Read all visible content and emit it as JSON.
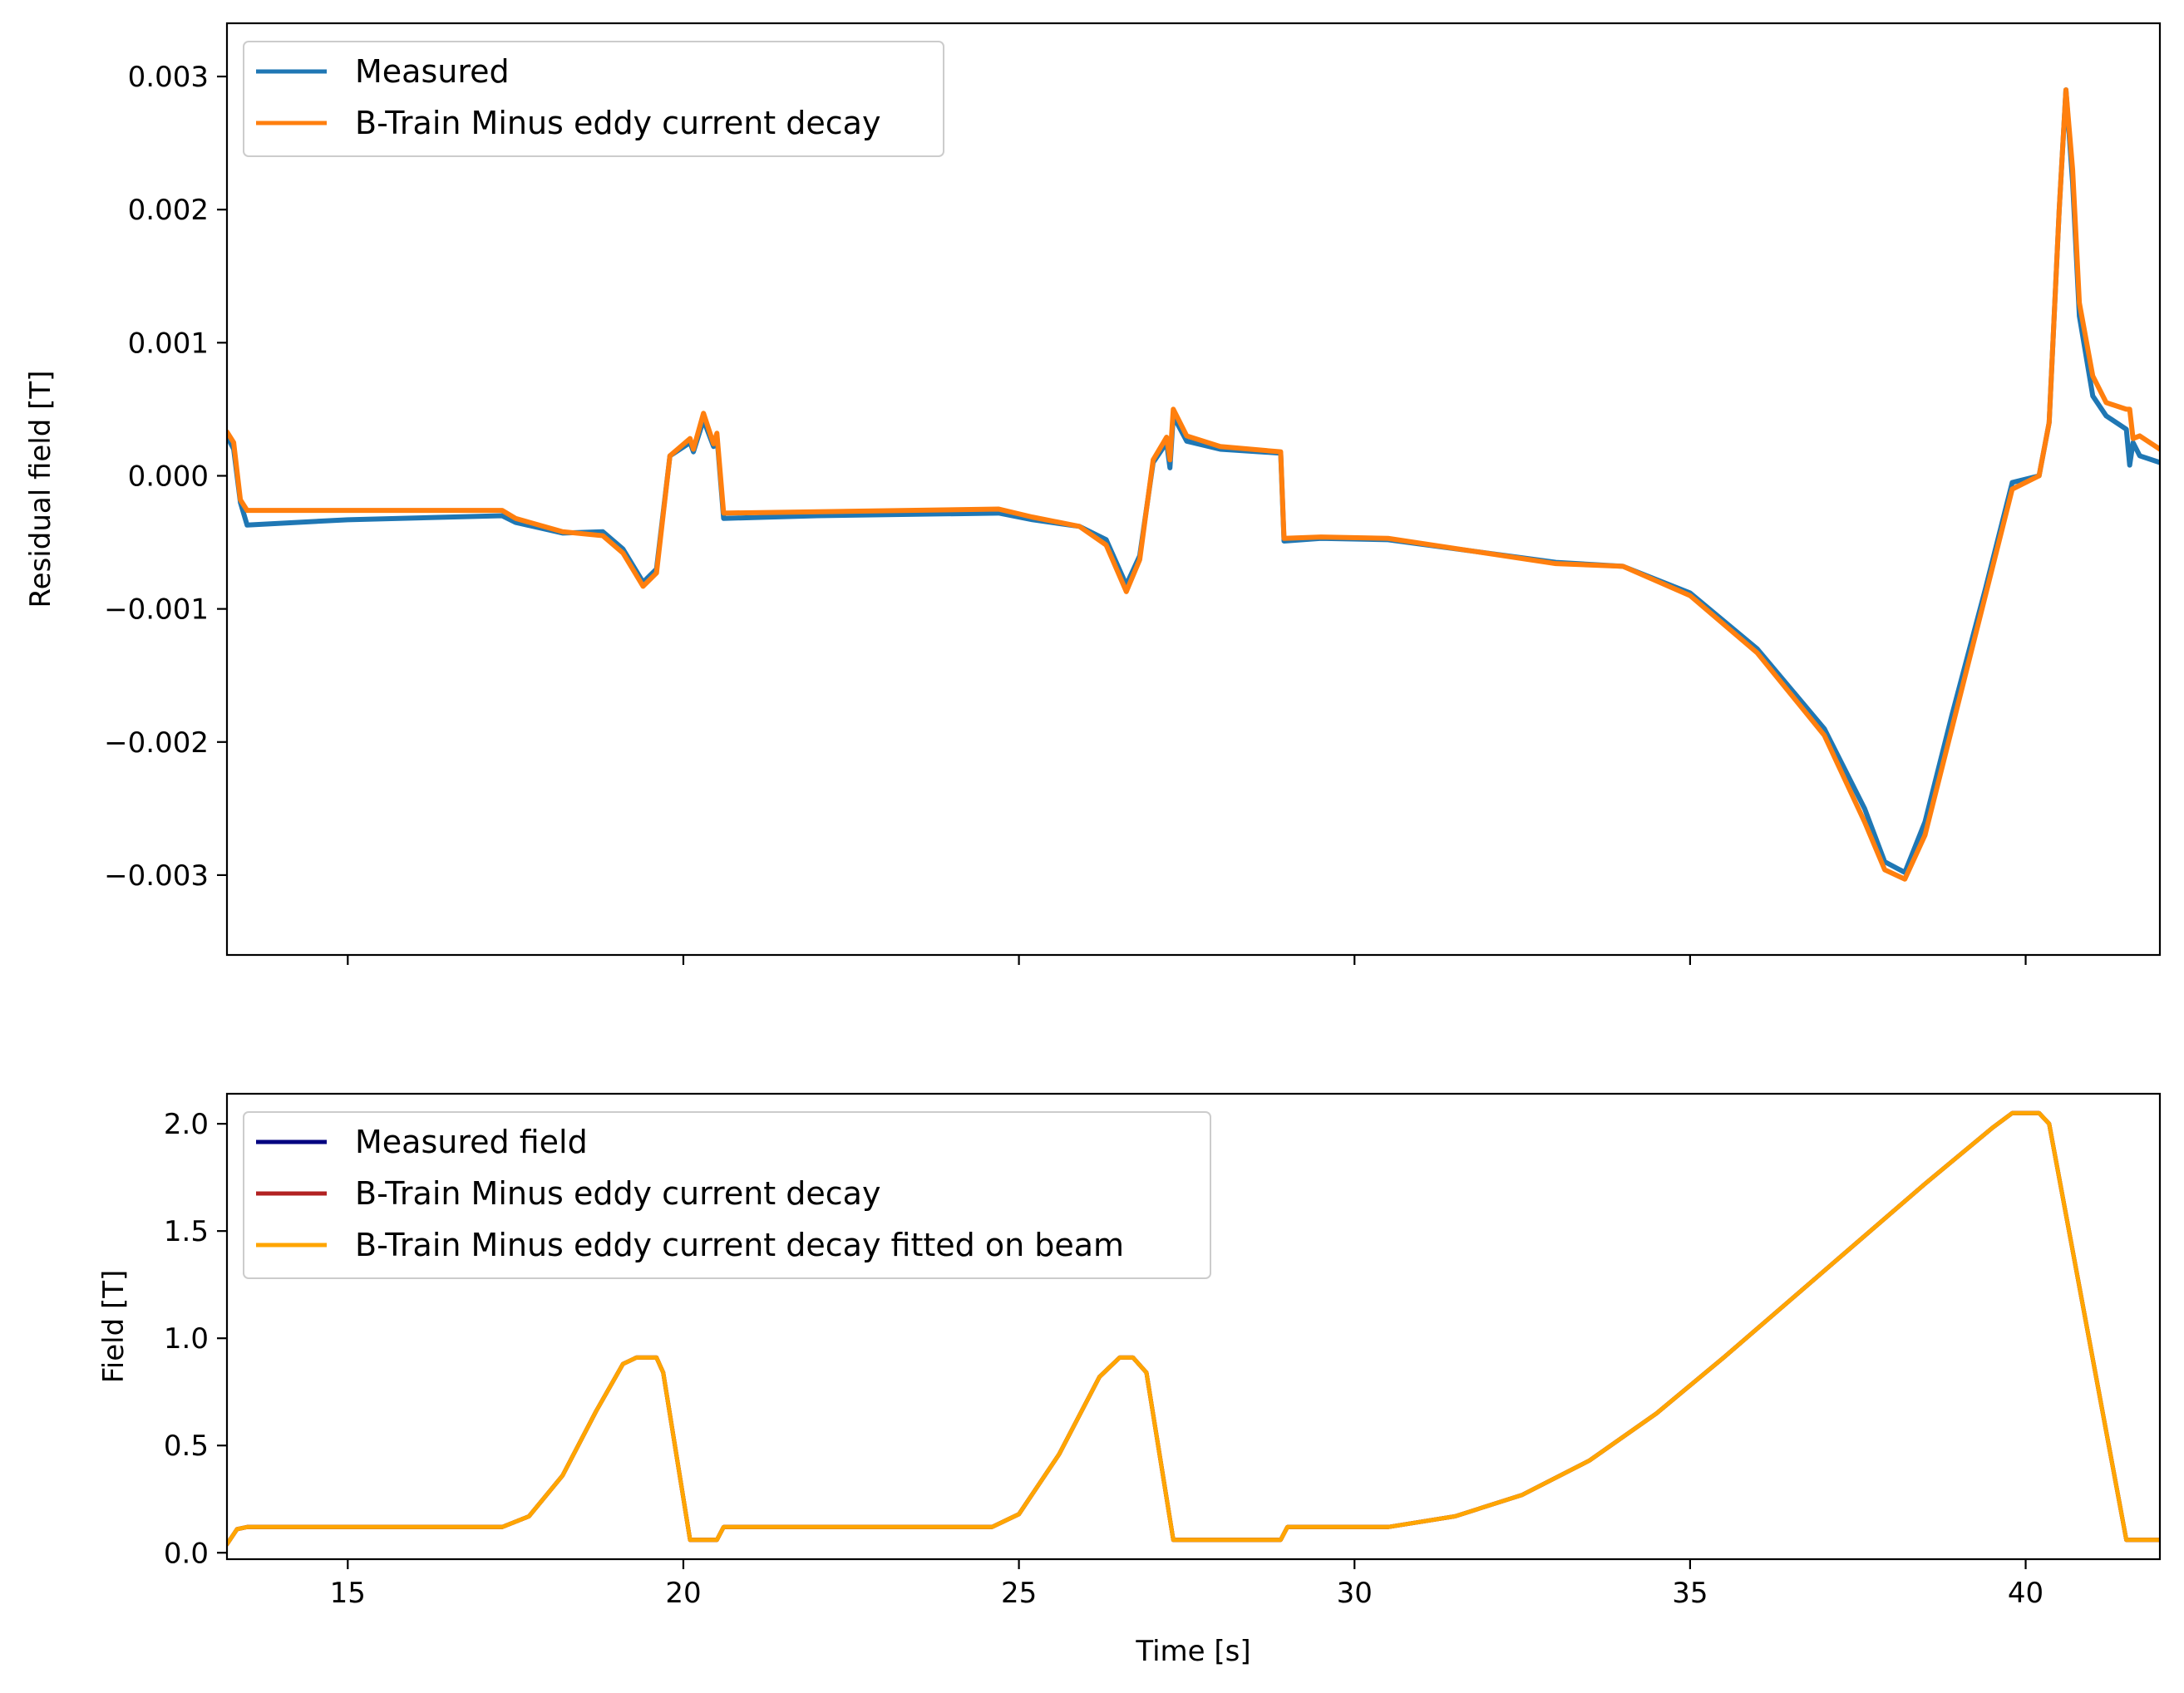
{
  "chart_data": [
    {
      "type": "line",
      "xlabel": "",
      "ylabel": "Residual field [T]",
      "xlim": [
        13.2,
        42.0
      ],
      "ylim": [
        -0.0036,
        0.0034
      ],
      "x_ticks": [
        15,
        20,
        25,
        30,
        35,
        40
      ],
      "x_tick_labels_visible": false,
      "y_ticks": [
        -0.003,
        -0.002,
        -0.001,
        0.0,
        0.001,
        0.002,
        0.003
      ],
      "y_tick_labels": [
        "−0.003",
        "−0.002",
        "−0.001",
        "0.000",
        "0.001",
        "0.002",
        "0.003"
      ],
      "grid": false,
      "legend": "top-left",
      "series": [
        {
          "name": "Measured",
          "color": "#1f77b4",
          "x": [
            13.2,
            13.3,
            13.4,
            13.5,
            15,
            17.3,
            17.5,
            18.2,
            18.8,
            19.1,
            19.4,
            19.6,
            19.8,
            20.1,
            20.15,
            20.3,
            20.45,
            20.5,
            20.6,
            22,
            24.7,
            25.2,
            25.9,
            26.3,
            26.6,
            26.8,
            27.0,
            27.2,
            27.25,
            27.3,
            27.5,
            28.0,
            28.9,
            28.95,
            29.5,
            30.5,
            33.0,
            34.0,
            35.0,
            36.0,
            37.0,
            37.6,
            37.9,
            38.2,
            38.5,
            38.9,
            39.4,
            39.8,
            40.2,
            40.35,
            40.5,
            40.6,
            40.7,
            40.8,
            41.0,
            41.2,
            41.5,
            41.55,
            41.6,
            41.7,
            42.0
          ],
          "values": [
            0.0003,
            0.0002,
            -0.0002,
            -0.00037,
            -0.00033,
            -0.0003,
            -0.00035,
            -0.00043,
            -0.00042,
            -0.00055,
            -0.0008,
            -0.0007,
            0.00015,
            0.00025,
            0.00018,
            0.00042,
            0.00022,
            0.0003,
            -0.00032,
            -0.0003,
            -0.00028,
            -0.00033,
            -0.00038,
            -0.00048,
            -0.00082,
            -0.0006,
            0.0001,
            0.00025,
            6e-05,
            0.00045,
            0.00026,
            0.0002,
            0.00017,
            -0.00049,
            -0.00047,
            -0.00048,
            -0.00065,
            -0.00068,
            -0.00088,
            -0.0013,
            -0.0019,
            -0.0025,
            -0.0029,
            -0.00298,
            -0.0026,
            -0.0018,
            -0.00085,
            -5e-05,
            0.0,
            0.0004,
            0.002,
            0.0029,
            0.0022,
            0.0012,
            0.0006,
            0.00045,
            0.00035,
            8e-05,
            0.00025,
            0.00015,
            0.0001
          ]
        },
        {
          "name": "B-Train Minus eddy current decay",
          "color": "#ff7f0e",
          "x": [
            13.2,
            13.3,
            13.4,
            13.5,
            15,
            17.3,
            17.5,
            18.2,
            18.8,
            19.1,
            19.4,
            19.6,
            19.8,
            20.1,
            20.15,
            20.3,
            20.45,
            20.5,
            20.6,
            22,
            24.7,
            25.2,
            25.9,
            26.3,
            26.6,
            26.8,
            27.0,
            27.2,
            27.25,
            27.3,
            27.5,
            28.0,
            28.9,
            28.95,
            29.5,
            30.5,
            33.0,
            34.0,
            35.0,
            36.0,
            37.0,
            37.6,
            37.9,
            38.2,
            38.5,
            38.9,
            39.4,
            39.8,
            40.2,
            40.35,
            40.5,
            40.6,
            40.7,
            40.8,
            41.0,
            41.2,
            41.5,
            41.55,
            41.6,
            41.7,
            42.0
          ],
          "values": [
            0.00033,
            0.00025,
            -0.00018,
            -0.00026,
            -0.00026,
            -0.00026,
            -0.00032,
            -0.00042,
            -0.00045,
            -0.00058,
            -0.00083,
            -0.00073,
            0.00015,
            0.00028,
            0.0002,
            0.00047,
            0.00024,
            0.00032,
            -0.00028,
            -0.00027,
            -0.00025,
            -0.00031,
            -0.00038,
            -0.00052,
            -0.00087,
            -0.00063,
            0.00012,
            0.00029,
            0.00012,
            0.0005,
            0.0003,
            0.00022,
            0.00018,
            -0.00047,
            -0.00046,
            -0.00047,
            -0.00066,
            -0.00068,
            -0.0009,
            -0.00133,
            -0.00195,
            -0.0026,
            -0.00296,
            -0.00303,
            -0.0027,
            -0.0019,
            -0.0009,
            -0.0001,
            0.0,
            0.0004,
            0.002,
            0.0029,
            0.0023,
            0.0013,
            0.00075,
            0.00055,
            0.0005,
            0.0005,
            0.00028,
            0.0003,
            0.0002
          ]
        }
      ]
    },
    {
      "type": "line",
      "xlabel": "Time [s]",
      "ylabel": "Field [T]",
      "xlim": [
        13.2,
        42.0
      ],
      "ylim": [
        -0.03,
        2.14
      ],
      "x_ticks": [
        15,
        20,
        25,
        30,
        35,
        40
      ],
      "x_tick_labels": [
        "15",
        "20",
        "25",
        "30",
        "35",
        "40"
      ],
      "y_ticks": [
        0.0,
        0.5,
        1.0,
        1.5,
        2.0
      ],
      "y_tick_labels": [
        "0.0",
        "0.5",
        "1.0",
        "1.5",
        "2.0"
      ],
      "grid": false,
      "legend": "top-left",
      "series": [
        {
          "name": "Measured field",
          "color": "#000080",
          "x": [
            13.2,
            13.35,
            13.5,
            17.3,
            17.7,
            18.2,
            18.7,
            19.1,
            19.3,
            19.6,
            19.7,
            20.1,
            20.5,
            20.6,
            24.6,
            25.0,
            25.6,
            26.2,
            26.5,
            26.7,
            26.9,
            27.3,
            28.9,
            29.0,
            29.5,
            30.5,
            31.5,
            32.5,
            33.5,
            34.5,
            35.5,
            36.5,
            37.5,
            38.5,
            39.5,
            39.8,
            40.2,
            40.35,
            41.5,
            42.0
          ],
          "values": [
            0.04,
            0.11,
            0.12,
            0.12,
            0.17,
            0.36,
            0.66,
            0.88,
            0.91,
            0.91,
            0.84,
            0.06,
            0.06,
            0.12,
            0.12,
            0.18,
            0.46,
            0.82,
            0.91,
            0.91,
            0.84,
            0.06,
            0.06,
            0.12,
            0.12,
            0.12,
            0.17,
            0.27,
            0.43,
            0.65,
            0.91,
            1.18,
            1.45,
            1.72,
            1.98,
            2.05,
            2.05,
            2.0,
            0.06,
            0.06
          ]
        },
        {
          "name": "B-Train Minus eddy current decay",
          "color": "#b22222",
          "x": [
            13.2,
            13.35,
            13.5,
            17.3,
            17.7,
            18.2,
            18.7,
            19.1,
            19.3,
            19.6,
            19.7,
            20.1,
            20.5,
            20.6,
            24.6,
            25.0,
            25.6,
            26.2,
            26.5,
            26.7,
            26.9,
            27.3,
            28.9,
            29.0,
            29.5,
            30.5,
            31.5,
            32.5,
            33.5,
            34.5,
            35.5,
            36.5,
            37.5,
            38.5,
            39.5,
            39.8,
            40.2,
            40.35,
            41.5,
            42.0
          ],
          "values": [
            0.04,
            0.11,
            0.12,
            0.12,
            0.17,
            0.36,
            0.66,
            0.88,
            0.91,
            0.91,
            0.84,
            0.06,
            0.06,
            0.12,
            0.12,
            0.18,
            0.46,
            0.82,
            0.91,
            0.91,
            0.84,
            0.06,
            0.06,
            0.12,
            0.12,
            0.12,
            0.17,
            0.27,
            0.43,
            0.65,
            0.91,
            1.18,
            1.45,
            1.72,
            1.98,
            2.05,
            2.05,
            2.0,
            0.06,
            0.06
          ]
        },
        {
          "name": "B-Train Minus eddy current decay fitted on beam",
          "color": "#ffa500",
          "x": [
            13.2,
            13.35,
            13.5,
            17.3,
            17.7,
            18.2,
            18.7,
            19.1,
            19.3,
            19.6,
            19.7,
            20.1,
            20.5,
            20.6,
            24.6,
            25.0,
            25.6,
            26.2,
            26.5,
            26.7,
            26.9,
            27.3,
            28.9,
            29.0,
            29.5,
            30.5,
            31.5,
            32.5,
            33.5,
            34.5,
            35.5,
            36.5,
            37.5,
            38.5,
            39.5,
            39.8,
            40.2,
            40.35,
            41.5,
            42.0
          ],
          "values": [
            0.04,
            0.11,
            0.12,
            0.12,
            0.17,
            0.36,
            0.66,
            0.88,
            0.91,
            0.91,
            0.84,
            0.06,
            0.06,
            0.12,
            0.12,
            0.18,
            0.46,
            0.82,
            0.91,
            0.91,
            0.84,
            0.06,
            0.06,
            0.12,
            0.12,
            0.12,
            0.17,
            0.27,
            0.43,
            0.65,
            0.91,
            1.18,
            1.45,
            1.72,
            1.98,
            2.05,
            2.05,
            2.0,
            0.06,
            0.06
          ]
        }
      ]
    }
  ]
}
